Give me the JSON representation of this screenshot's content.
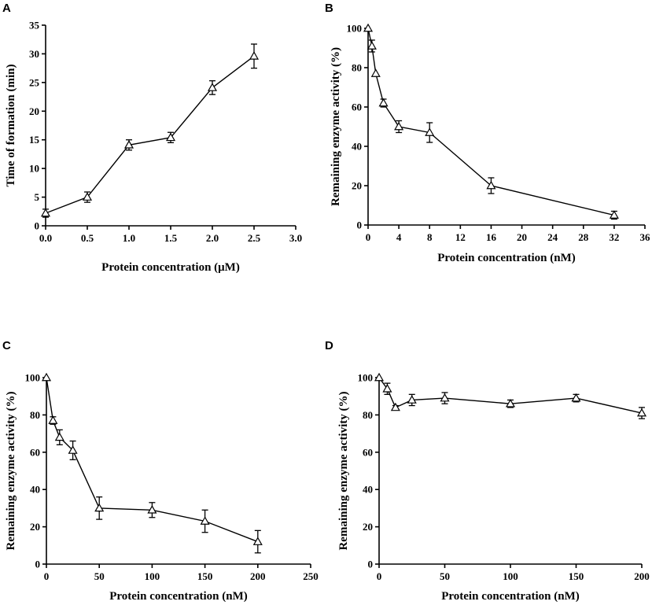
{
  "figure": {
    "panels": [
      "A",
      "B",
      "C",
      "D"
    ]
  },
  "chart_data": [
    {
      "panel": "A",
      "type": "line",
      "marker": "open-triangle",
      "xlabel": "Protein concentration (μM)",
      "ylabel": "Time of formation (min)",
      "xlim": [
        0,
        3.0
      ],
      "ylim": [
        0,
        35
      ],
      "xticks": [
        "0.0",
        "0.5",
        "1.0",
        "1.5",
        "2.0",
        "2.5",
        "3.0"
      ],
      "yticks": [
        "0",
        "5",
        "10",
        "15",
        "20",
        "25",
        "30",
        "35"
      ],
      "x": [
        0,
        0.5,
        1.0,
        1.5,
        2.0,
        2.5
      ],
      "y": [
        2.2,
        5.0,
        14.1,
        15.4,
        24.1,
        29.6
      ],
      "error": [
        0.7,
        0.9,
        0.9,
        0.9,
        1.2,
        2.1
      ]
    },
    {
      "panel": "B",
      "type": "line",
      "marker": "open-triangle",
      "xlabel": "Protein concentration (nM)",
      "ylabel": "Remaining enzyme activity (%)",
      "xlim": [
        0,
        36
      ],
      "ylim": [
        0,
        100
      ],
      "xticks": [
        "0",
        "4",
        "8",
        "12",
        "16",
        "20",
        "24",
        "28",
        "32",
        "36"
      ],
      "yticks": [
        "0",
        "20",
        "40",
        "60",
        "80",
        "100"
      ],
      "x": [
        0,
        0.5,
        1,
        2,
        4,
        8,
        16,
        32
      ],
      "y": [
        100,
        91,
        77,
        62,
        50,
        47,
        20,
        5
      ],
      "error": [
        0,
        3,
        0,
        2,
        3,
        5,
        4,
        2
      ]
    },
    {
      "panel": "C",
      "type": "line",
      "marker": "open-triangle",
      "xlabel": "Protein concentration (nM)",
      "ylabel": "Remaining enzyme activity (%)",
      "xlim": [
        0,
        250
      ],
      "ylim": [
        0,
        100
      ],
      "xticks": [
        "0",
        "50",
        "100",
        "150",
        "200",
        "250"
      ],
      "yticks": [
        "0",
        "20",
        "40",
        "60",
        "80",
        "100"
      ],
      "x": [
        0,
        6.25,
        12.5,
        25,
        50,
        100,
        150,
        200
      ],
      "y": [
        100,
        77,
        68,
        61,
        30,
        29,
        23,
        12
      ],
      "error": [
        0,
        2,
        4,
        5,
        6,
        4,
        6,
        6
      ]
    },
    {
      "panel": "D",
      "type": "line",
      "marker": "open-triangle",
      "xlabel": "Protein concentration (nM)",
      "ylabel": "Remaining enzyme activity (%)",
      "xlim": [
        0,
        200
      ],
      "ylim": [
        0,
        100
      ],
      "xticks": [
        "0",
        "50",
        "100",
        "150",
        "200"
      ],
      "yticks": [
        "0",
        "20",
        "40",
        "60",
        "80",
        "100"
      ],
      "x": [
        0,
        6.25,
        12.5,
        25,
        50,
        100,
        150,
        200
      ],
      "y": [
        100,
        94,
        84,
        88,
        89,
        86,
        89,
        81
      ],
      "error": [
        0,
        3,
        1,
        3,
        3,
        2,
        2,
        3
      ]
    }
  ]
}
